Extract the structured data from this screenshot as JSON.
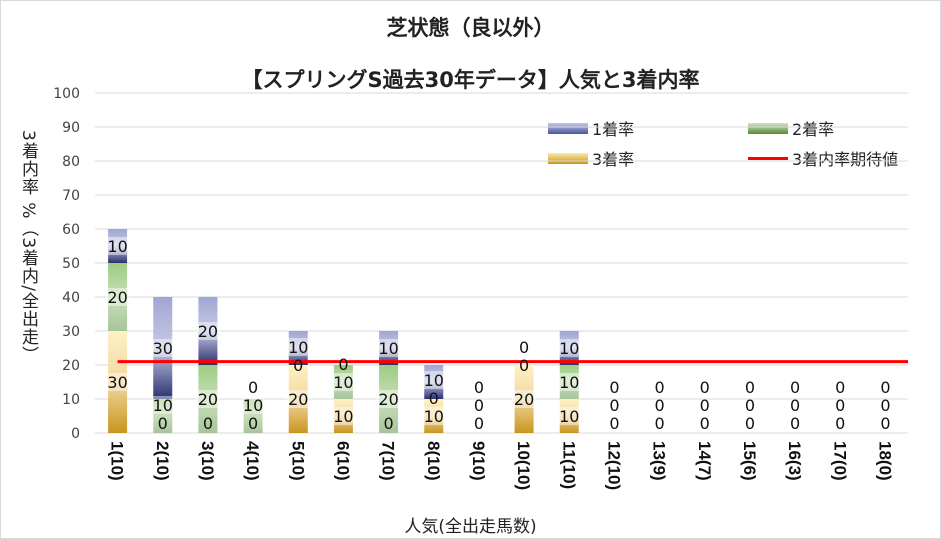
{
  "chart_data": {
    "type": "bar",
    "stacked": true,
    "title": "芝状態（良以外）",
    "subtitle": "【スプリングS過去30年データ】人気と3着内率",
    "xlabel": "人気(全出走馬数)",
    "ylabel": "3着内率 %（3着内/全出走）",
    "ylim": [
      0,
      100
    ],
    "yticks": [
      0,
      10,
      20,
      30,
      40,
      50,
      60,
      70,
      80,
      90,
      100
    ],
    "grid": true,
    "legend_position": "top-right",
    "categories": [
      "1(10)",
      "2(10)",
      "3(10)",
      "4(10)",
      "5(10)",
      "6(10)",
      "7(10)",
      "8(10)",
      "9(10)",
      "10(10)",
      "11(10)",
      "12(10)",
      "13(9)",
      "14(7)",
      "15(6)",
      "16(3)",
      "17(0)",
      "18(0)"
    ],
    "series": [
      {
        "name": "3着率",
        "color": "#d9a82a",
        "values": [
          30,
          0,
          0,
          0,
          20,
          10,
          0,
          10,
          0,
          20,
          10,
          0,
          0,
          0,
          0,
          0,
          0,
          0
        ]
      },
      {
        "name": "2着率",
        "color": "#70a844",
        "values": [
          20,
          10,
          20,
          10,
          0,
          10,
          20,
          0,
          0,
          0,
          10,
          0,
          0,
          0,
          0,
          0,
          0,
          0
        ]
      },
      {
        "name": "1着率",
        "color": "#4a55a0",
        "values": [
          10,
          30,
          20,
          0,
          10,
          0,
          10,
          10,
          0,
          0,
          10,
          0,
          0,
          0,
          0,
          0,
          0,
          0
        ]
      }
    ],
    "line": {
      "name": "3着内率期待値",
      "color": "#ff0000",
      "value": 21
    }
  }
}
